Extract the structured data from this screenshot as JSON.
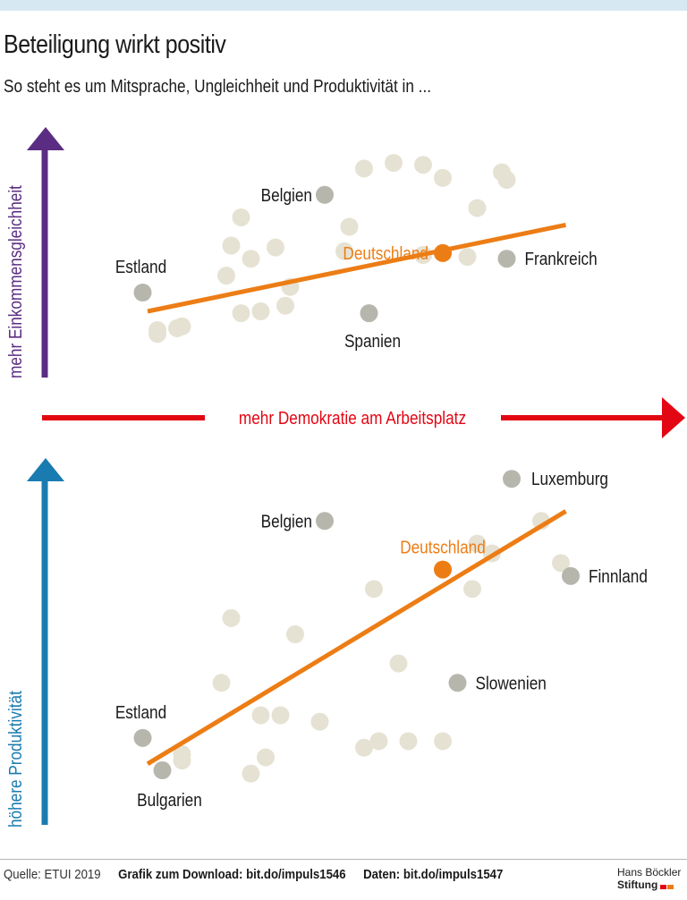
{
  "title": "Beteiligung wirkt positiv",
  "subtitle": "So steht es um Mitsprache, Ungleichheit und Produktivität in ...",
  "axes": {
    "y_top_label": "mehr Einkommensgleichheit",
    "y_bottom_label": "höhere Produktivität",
    "x_label": "mehr Demokratie am Arbeitsplatz"
  },
  "colors": {
    "top_axis": "#5b2d82",
    "bottom_axis": "#1a7bb0",
    "x_axis": "#e30613",
    "trend": "#ec7d15",
    "highlight": "#ec7d15",
    "named_point": "#b7b6ad",
    "background_point": "#e6e2d3"
  },
  "footer": {
    "source": "Quelle: ETUI 2019",
    "download": "Grafik zum Download: bit.do/impuls1546",
    "data": "Daten: bit.do/impuls1547"
  },
  "logo": {
    "line1": "Hans Böckler",
    "line2": "Stiftung"
  },
  "chart_data": [
    {
      "type": "scatter",
      "title": "",
      "xlabel": "mehr Demokratie am Arbeitsplatz",
      "ylabel": "mehr Einkommensgleichheit",
      "xlim": [
        0,
        100
      ],
      "ylim": [
        0,
        100
      ],
      "trend": {
        "x": [
          10,
          95
        ],
        "y": [
          20,
          66
        ]
      },
      "labeled_points": [
        {
          "name": "Estland",
          "x": 9,
          "y": 30,
          "kind": "named"
        },
        {
          "name": "Belgien",
          "x": 46,
          "y": 82,
          "kind": "named"
        },
        {
          "name": "Deutschland",
          "x": 70,
          "y": 51,
          "kind": "highlight"
        },
        {
          "name": "Frankreich",
          "x": 83,
          "y": 48,
          "kind": "named"
        },
        {
          "name": "Spanien",
          "x": 55,
          "y": 19,
          "kind": "named"
        }
      ],
      "points": [
        {
          "x": 54,
          "y": 96
        },
        {
          "x": 60,
          "y": 99
        },
        {
          "x": 66,
          "y": 98
        },
        {
          "x": 70,
          "y": 91
        },
        {
          "x": 82,
          "y": 94
        },
        {
          "x": 83,
          "y": 90
        },
        {
          "x": 77,
          "y": 75
        },
        {
          "x": 29,
          "y": 70
        },
        {
          "x": 51,
          "y": 65
        },
        {
          "x": 27,
          "y": 55
        },
        {
          "x": 36,
          "y": 54
        },
        {
          "x": 50,
          "y": 52
        },
        {
          "x": 66,
          "y": 50
        },
        {
          "x": 75,
          "y": 49
        },
        {
          "x": 31,
          "y": 48
        },
        {
          "x": 26,
          "y": 39
        },
        {
          "x": 39,
          "y": 33
        },
        {
          "x": 29,
          "y": 19
        },
        {
          "x": 33,
          "y": 20
        },
        {
          "x": 38,
          "y": 23
        },
        {
          "x": 16,
          "y": 11
        },
        {
          "x": 17,
          "y": 12
        },
        {
          "x": 12,
          "y": 8
        },
        {
          "x": 12,
          "y": 10
        }
      ]
    },
    {
      "type": "scatter",
      "title": "",
      "xlabel": "mehr Demokratie am Arbeitsplatz",
      "ylabel": "höhere Produktivität",
      "xlim": [
        0,
        100
      ],
      "ylim": [
        0,
        100
      ],
      "trend": {
        "x": [
          10,
          95
        ],
        "y": [
          10,
          88
        ]
      },
      "labeled_points": [
        {
          "name": "Estland",
          "x": 9,
          "y": 18,
          "kind": "named"
        },
        {
          "name": "Bulgarien",
          "x": 13,
          "y": 8,
          "kind": "named"
        },
        {
          "name": "Belgien",
          "x": 46,
          "y": 85,
          "kind": "named"
        },
        {
          "name": "Luxemburg",
          "x": 84,
          "y": 98,
          "kind": "named"
        },
        {
          "name": "Deutschland",
          "x": 70,
          "y": 70,
          "kind": "highlight"
        },
        {
          "name": "Finnland",
          "x": 96,
          "y": 68,
          "kind": "named"
        },
        {
          "name": "Slowenien",
          "x": 73,
          "y": 35,
          "kind": "named"
        }
      ],
      "points": [
        {
          "x": 90,
          "y": 85
        },
        {
          "x": 77,
          "y": 78
        },
        {
          "x": 80,
          "y": 75
        },
        {
          "x": 94,
          "y": 72
        },
        {
          "x": 76,
          "y": 64
        },
        {
          "x": 56,
          "y": 64
        },
        {
          "x": 27,
          "y": 55
        },
        {
          "x": 40,
          "y": 50
        },
        {
          "x": 61,
          "y": 41
        },
        {
          "x": 25,
          "y": 35
        },
        {
          "x": 33,
          "y": 25
        },
        {
          "x": 37,
          "y": 25
        },
        {
          "x": 45,
          "y": 23
        },
        {
          "x": 57,
          "y": 17
        },
        {
          "x": 54,
          "y": 15
        },
        {
          "x": 63,
          "y": 17
        },
        {
          "x": 70,
          "y": 17
        },
        {
          "x": 34,
          "y": 12
        },
        {
          "x": 31,
          "y": 7
        },
        {
          "x": 17,
          "y": 11
        },
        {
          "x": 17,
          "y": 13
        }
      ]
    }
  ]
}
